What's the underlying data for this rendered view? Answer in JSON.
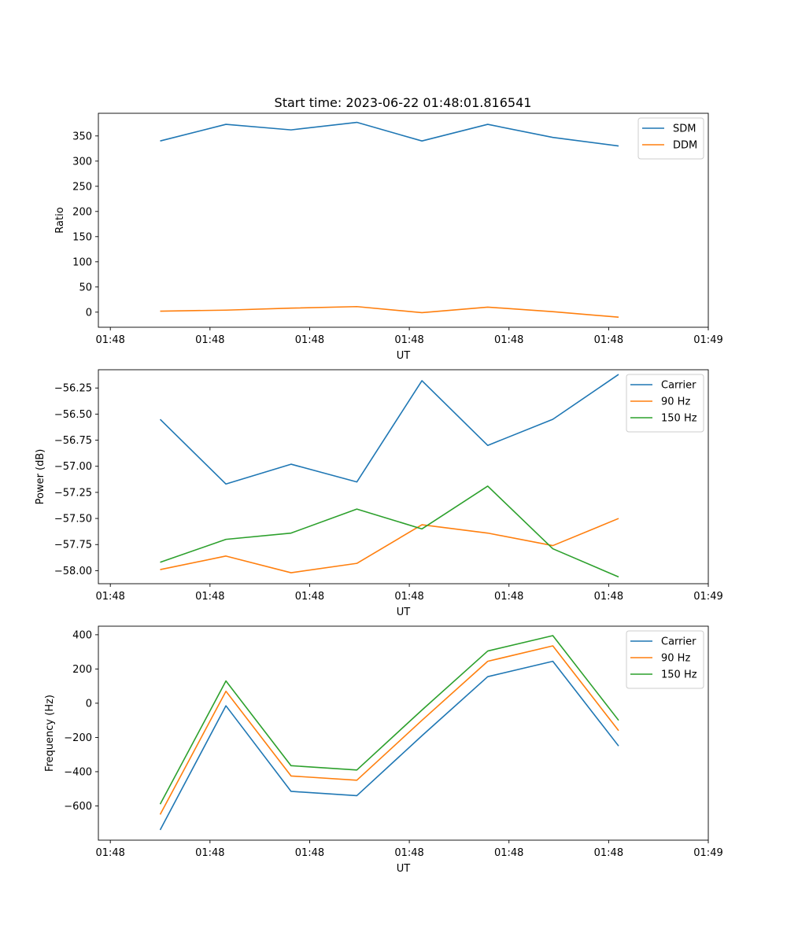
{
  "figure_title": "Start time: 2023-06-22 01:48:01.816541",
  "colors": {
    "blue": "#1f77b4",
    "orange": "#ff7f0e",
    "green": "#2ca02c"
  },
  "chart_data": [
    {
      "type": "line",
      "title": "Start time: 2023-06-22 01:48:01.816541",
      "xlabel": "UT",
      "ylabel": "Ratio",
      "xlim": [
        -0.18,
        9.0
      ],
      "ylim": [
        -30,
        395
      ],
      "xticks": [
        0,
        1.5,
        3.0,
        4.5,
        6.0,
        7.5,
        9.0
      ],
      "xticklabels": [
        "01:48",
        "01:48",
        "01:48",
        "01:48",
        "01:48",
        "01:48",
        "01:49"
      ],
      "yticks": [
        0,
        50,
        100,
        150,
        200,
        250,
        300,
        350
      ],
      "yticklabels": [
        "0",
        "50",
        "100",
        "150",
        "200",
        "250",
        "300",
        "350"
      ],
      "legend": "top-right",
      "x": [
        0.75,
        1.74,
        2.72,
        3.71,
        4.69,
        5.68,
        6.66,
        7.65
      ],
      "series": [
        {
          "name": "SDM",
          "color": "#1f77b4",
          "values": [
            340,
            373,
            362,
            377,
            340,
            373,
            347,
            330
          ]
        },
        {
          "name": "DDM",
          "color": "#ff7f0e",
          "values": [
            2,
            4,
            8,
            11,
            -1,
            10,
            1,
            -10
          ]
        }
      ]
    },
    {
      "type": "line",
      "xlabel": "UT",
      "ylabel": "Power (dB)",
      "xlim": [
        -0.18,
        9.0
      ],
      "ylim": [
        -58.125,
        -56.075
      ],
      "xticks": [
        0,
        1.5,
        3.0,
        4.5,
        6.0,
        7.5,
        9.0
      ],
      "xticklabels": [
        "01:48",
        "01:48",
        "01:48",
        "01:48",
        "01:48",
        "01:48",
        "01:49"
      ],
      "yticks": [
        -58.0,
        -57.75,
        -57.5,
        -57.25,
        -57.0,
        -56.75,
        -56.5,
        -56.25
      ],
      "yticklabels": [
        "−58.00",
        "−57.75",
        "−57.50",
        "−57.25",
        "−57.00",
        "−56.75",
        "−56.50",
        "−56.25"
      ],
      "legend": "top-right",
      "x": [
        0.75,
        1.74,
        2.72,
        3.71,
        4.69,
        5.68,
        6.66,
        7.65
      ],
      "series": [
        {
          "name": "Carrier",
          "color": "#1f77b4",
          "values": [
            -56.55,
            -57.17,
            -56.98,
            -57.15,
            -56.18,
            -56.8,
            -56.55,
            -56.12
          ]
        },
        {
          "name": "90 Hz",
          "color": "#ff7f0e",
          "values": [
            -57.99,
            -57.86,
            -58.02,
            -57.93,
            -57.56,
            -57.64,
            -57.76,
            -57.5
          ]
        },
        {
          "name": "150 Hz",
          "color": "#2ca02c",
          "values": [
            -57.92,
            -57.7,
            -57.64,
            -57.41,
            -57.6,
            -57.19,
            -57.79,
            -58.06
          ]
        }
      ]
    },
    {
      "type": "line",
      "xlabel": "UT",
      "ylabel": "Frequency (Hz)",
      "xlim": [
        -0.18,
        9.0
      ],
      "ylim": [
        -800,
        450
      ],
      "xticks": [
        0,
        1.5,
        3.0,
        4.5,
        6.0,
        7.5,
        9.0
      ],
      "xticklabels": [
        "01:48",
        "01:48",
        "01:48",
        "01:48",
        "01:48",
        "01:48",
        "01:49"
      ],
      "yticks": [
        -600,
        -400,
        -200,
        0,
        200,
        400
      ],
      "yticklabels": [
        "−600",
        "−400",
        "−200",
        "0",
        "200",
        "400"
      ],
      "legend": "top-right",
      "x": [
        0.75,
        1.74,
        2.72,
        3.71,
        4.69,
        5.68,
        6.66,
        7.65
      ],
      "series": [
        {
          "name": "Carrier",
          "color": "#1f77b4",
          "values": [
            -740,
            -15,
            -515,
            -540,
            -190,
            155,
            245,
            -250
          ]
        },
        {
          "name": "90 Hz",
          "color": "#ff7f0e",
          "values": [
            -650,
            70,
            -425,
            -450,
            -100,
            245,
            335,
            -160
          ]
        },
        {
          "name": "150 Hz",
          "color": "#2ca02c",
          "values": [
            -590,
            130,
            -365,
            -390,
            -40,
            305,
            395,
            -100
          ]
        }
      ]
    }
  ]
}
